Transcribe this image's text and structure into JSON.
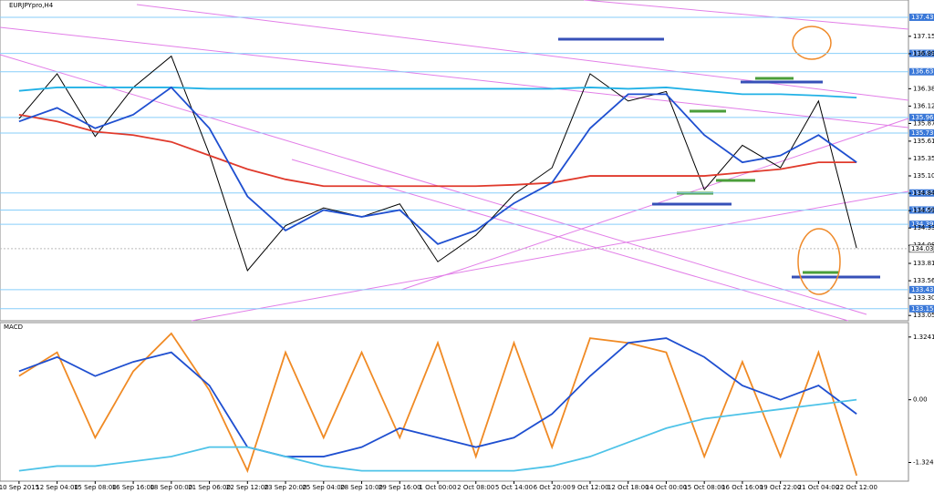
{
  "chart_data": [
    {
      "type": "line",
      "title": "EURJPYpro,H4",
      "categories": [
        "10 Sep 2015",
        "12 Sep 04:00",
        "15 Sep 08:00",
        "16 Sep 16:00",
        "18 Sep 00:00",
        "21 Sep 06:00",
        "22 Sep 12:00",
        "23 Sep 20:00",
        "25 Sep 04:00",
        "28 Sep 10:00",
        "29 Sep 16:00",
        "1 Oct 00:00",
        "2 Oct 08:00",
        "5 Oct 14:00",
        "6 Oct 20:00",
        "9 Oct 12:00",
        "12 Oct 18:00",
        "14 Oct 00:00",
        "15 Oct 08:00",
        "16 Oct 16:00",
        "19 Oct 22:00",
        "21 Oct 04:00",
        "22 Oct 12:00"
      ],
      "series": [
        {
          "color": "#000000",
          "values": [
            135.94,
            136.6,
            135.68,
            136.4,
            136.86,
            135.42,
            133.71,
            134.37,
            134.63,
            134.5,
            134.69,
            133.84,
            134.23,
            134.83,
            135.22,
            136.6,
            136.2,
            136.34,
            134.9,
            135.55,
            135.22,
            136.2,
            134.04
          ]
        },
        {
          "color": "#21b1e6",
          "values": [
            136.35,
            136.4,
            136.4,
            136.4,
            136.4,
            136.38,
            136.38,
            136.38,
            136.38,
            136.38,
            136.38,
            136.38,
            136.38,
            136.38,
            136.38,
            136.4,
            136.38,
            136.4,
            136.35,
            136.3,
            136.3,
            136.28,
            136.25
          ]
        },
        {
          "color": "#e03a2c",
          "values": [
            136.0,
            135.9,
            135.75,
            135.7,
            135.6,
            135.4,
            135.2,
            135.05,
            134.95,
            134.95,
            134.95,
            134.95,
            134.95,
            134.97,
            135.0,
            135.1,
            135.1,
            135.1,
            135.1,
            135.15,
            135.2,
            135.3,
            135.3
          ]
        },
        {
          "color": "#1f4fd0",
          "values": [
            135.9,
            136.1,
            135.8,
            136.0,
            136.4,
            135.8,
            134.8,
            134.3,
            134.6,
            134.5,
            134.6,
            134.1,
            134.3,
            134.7,
            135.0,
            135.8,
            136.3,
            136.3,
            135.7,
            135.3,
            135.4,
            135.7,
            135.3
          ]
        }
      ],
      "ylim": [
        133.0,
        137.55
      ],
      "yticks": [
        133.051,
        133.306,
        133.561,
        133.816,
        134.081,
        134.336,
        134.591,
        134.846,
        135.101,
        135.356,
        135.611,
        135.871,
        136.126,
        136.381,
        136.895,
        137.151
      ],
      "levels": [
        {
          "value": 137.43,
          "label": "137.430"
        },
        {
          "value": 136.9,
          "label": "136.900"
        },
        {
          "value": 136.63,
          "label": "136.630"
        },
        {
          "value": 135.96,
          "label": "135.960"
        },
        {
          "value": 135.73,
          "label": "135.730"
        },
        {
          "value": 134.85,
          "label": "134.850"
        },
        {
          "value": 134.6,
          "label": "134.600"
        },
        {
          "value": 134.39,
          "label": "134.390"
        },
        {
          "value": 133.43,
          "label": "133.430"
        },
        {
          "value": 133.15,
          "label": "133.150"
        }
      ],
      "level_color": "#87cefa",
      "current_price": 134.032
    },
    {
      "type": "line",
      "title": "MACD",
      "series": [
        {
          "color": "#f08a24",
          "values": [
            0.5,
            1.0,
            -0.8,
            0.6,
            1.4,
            0.2,
            -1.5,
            1.0,
            -0.8,
            1.0,
            -0.8,
            1.2,
            -1.2,
            1.2,
            -1.0,
            1.3,
            1.2,
            1.0,
            -1.2,
            0.8,
            -1.2,
            1.0,
            -1.6
          ]
        },
        {
          "color": "#1f4fd0",
          "values": [
            0.6,
            0.9,
            0.5,
            0.8,
            1.0,
            0.3,
            -1.0,
            -1.2,
            -1.2,
            -1.0,
            -0.6,
            -0.8,
            -1.0,
            -0.8,
            -0.3,
            0.5,
            1.2,
            1.3,
            0.9,
            0.3,
            0.0,
            0.3,
            -0.3
          ]
        },
        {
          "color": "#4ec3e8",
          "values": [
            -1.5,
            -1.4,
            -1.4,
            -1.3,
            -1.2,
            -1.0,
            -1.0,
            -1.2,
            -1.4,
            -1.5,
            -1.5,
            -1.5,
            -1.5,
            -1.5,
            -1.4,
            -1.2,
            -0.9,
            -0.6,
            -0.4,
            -0.3,
            -0.2,
            -0.1,
            0.0
          ]
        }
      ],
      "ylim": [
        -1.68,
        1.59
      ],
      "yticks": [
        1.3241,
        {
          "value": 0,
          "label": "0.00"
        },
        -1.3241
      ]
    }
  ]
}
